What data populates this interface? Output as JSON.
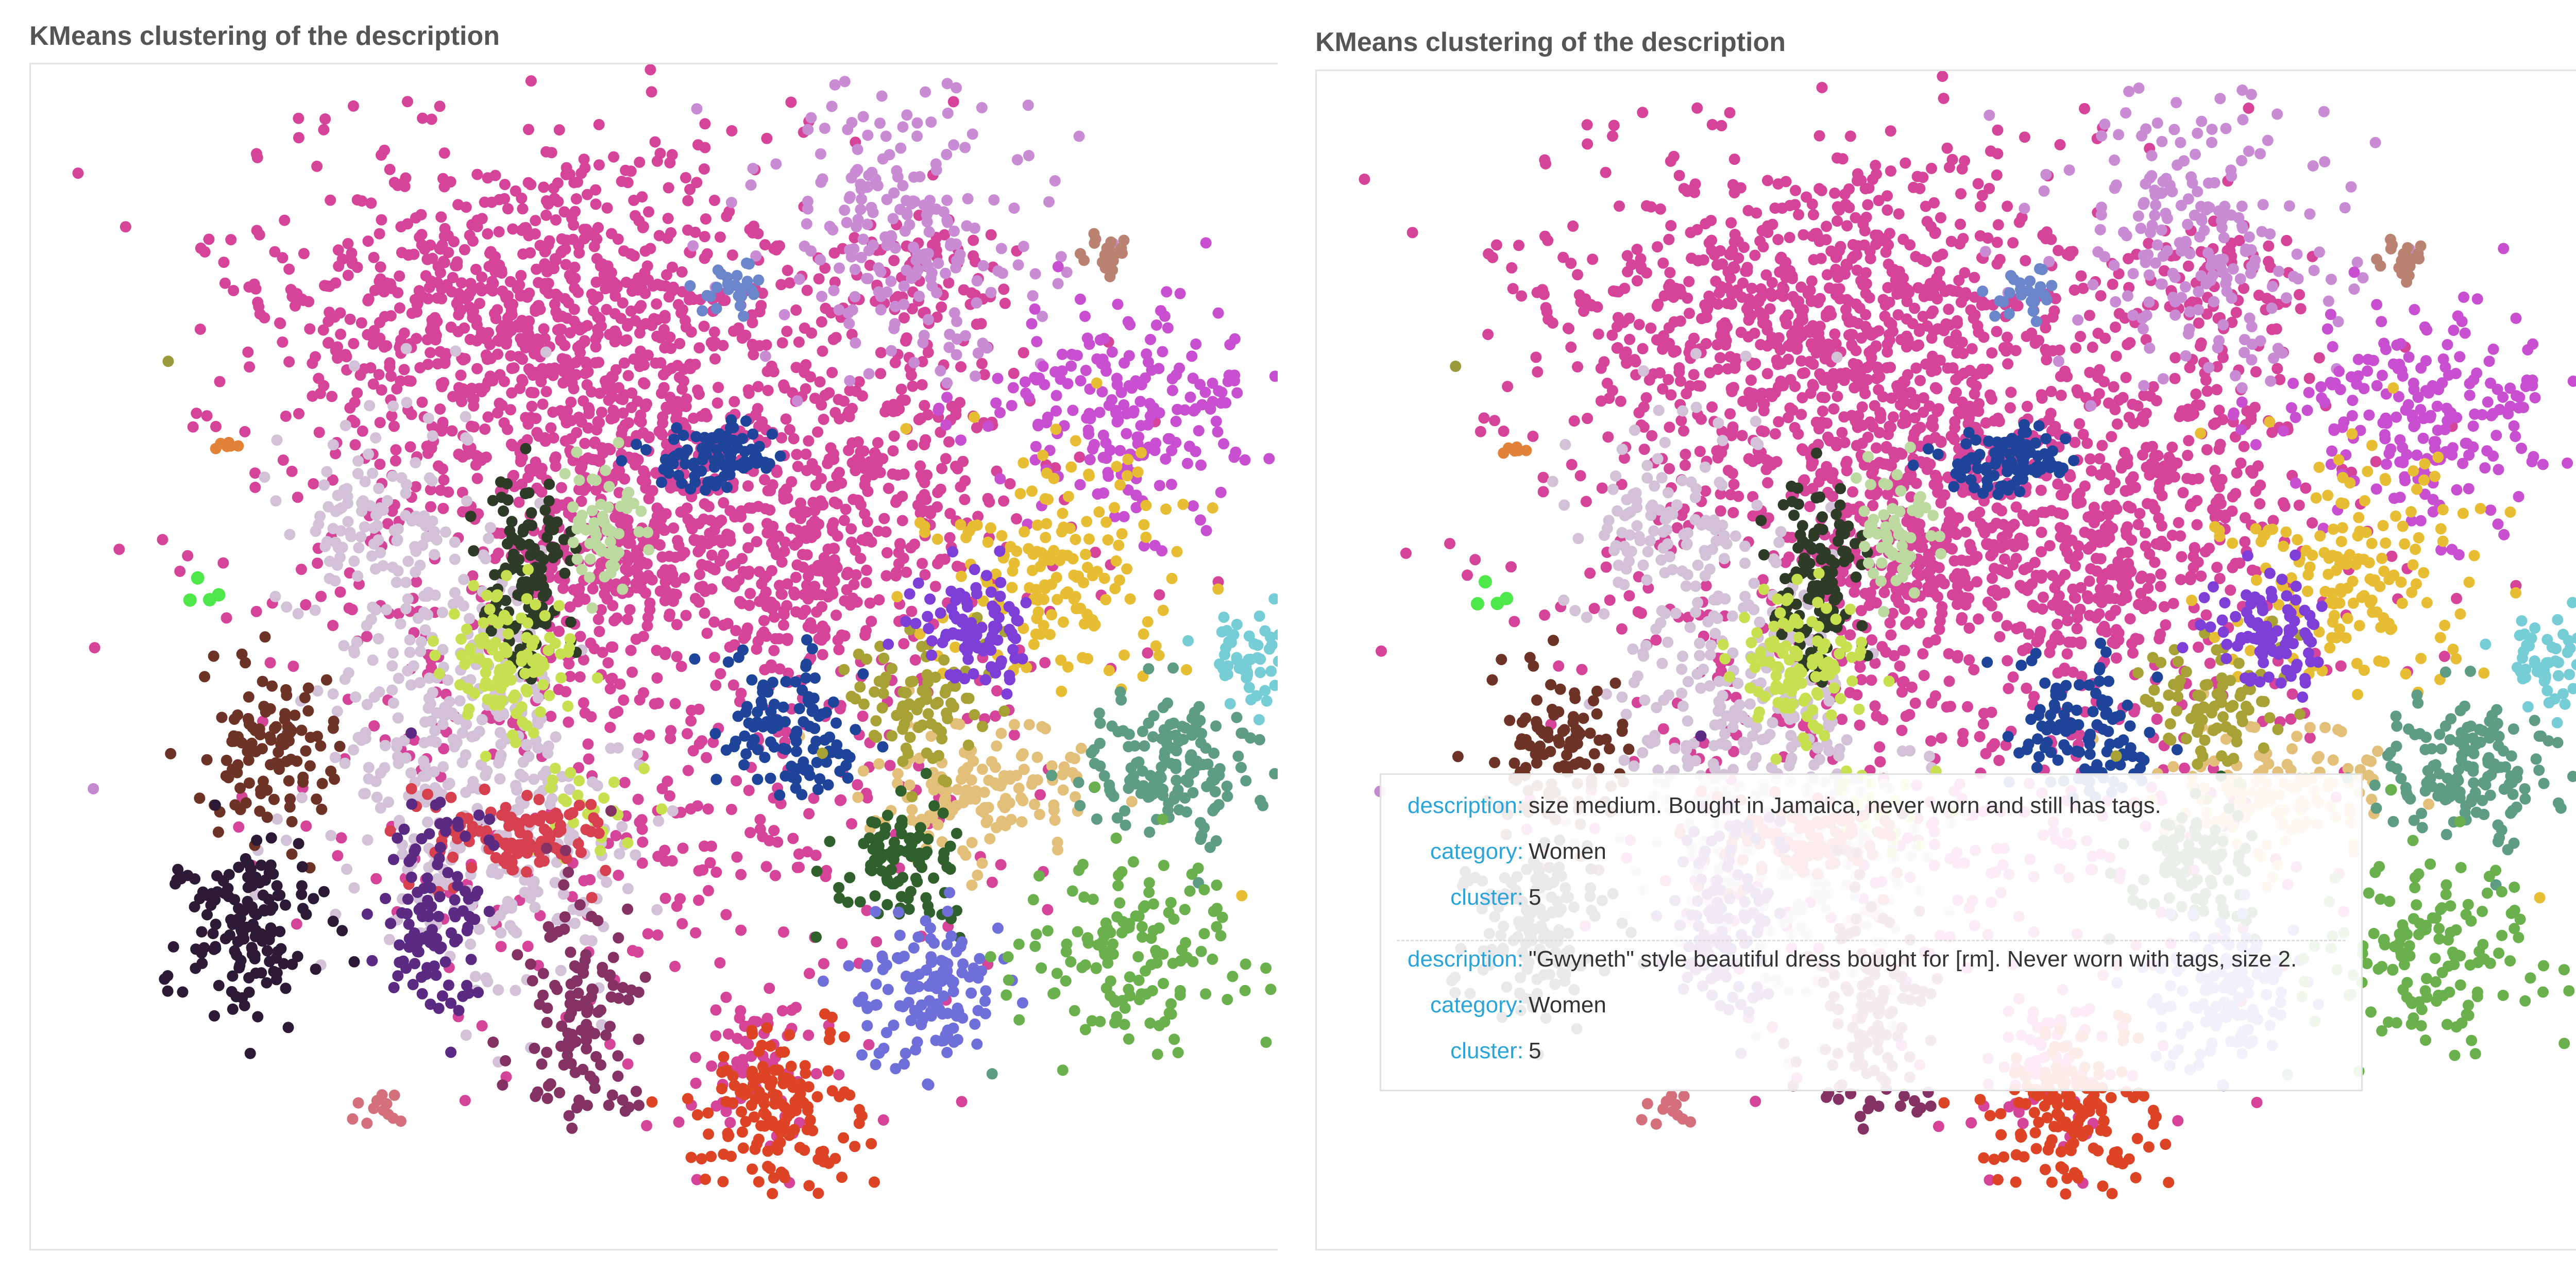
{
  "panels": [
    {
      "title": "KMeans clustering of the description"
    },
    {
      "title": "KMeans clustering of the description"
    }
  ],
  "tooltip": {
    "items": [
      {
        "description_key": "description:",
        "description": "size medium. Bought in Jamaica, never worn and still has tags.",
        "category_key": "category:",
        "category": "Women",
        "cluster_key": "cluster:",
        "cluster": "5"
      },
      {
        "description_key": "description:",
        "description": "\"Gwyneth\" style beautiful dress bought for [rm]. Never worn with tags, size 2.",
        "category_key": "category:",
        "category": "Women",
        "cluster_key": "cluster:",
        "cluster": "5"
      }
    ]
  },
  "chart_data": [
    {
      "type": "scatter",
      "title": "KMeans clustering of the description",
      "xlabel": "",
      "ylabel": "",
      "grid": false,
      "legend": "none",
      "series": [
        {
          "color": "#d6449a",
          "clusters": [
            {
              "cx": 0.4,
              "cy": 0.22,
              "sx": 0.105,
              "sy": 0.075,
              "n": 900,
              "r": 11
            },
            {
              "cx": 0.52,
              "cy": 0.45,
              "sx": 0.15,
              "sy": 0.17,
              "n": 900,
              "r": 11
            },
            {
              "cx": 0.69,
              "cy": 0.32,
              "sx": 0.05,
              "sy": 0.06,
              "n": 140,
              "r": 11
            },
            {
              "cx": 0.72,
              "cy": 0.18,
              "sx": 0.03,
              "sy": 0.03,
              "n": 60,
              "r": 11
            },
            {
              "cx": 0.48,
              "cy": 0.4,
              "sx": 0.05,
              "sy": 0.04,
              "n": 180,
              "r": 11
            },
            {
              "cx": 0.62,
              "cy": 0.42,
              "sx": 0.05,
              "sy": 0.04,
              "n": 160,
              "r": 11
            },
            {
              "cx": 0.58,
              "cy": 0.83,
              "sx": 0.04,
              "sy": 0.04,
              "n": 70,
              "r": 11
            }
          ]
        },
        {
          "color": "#c98bd4",
          "clusters": [
            {
              "cx": 0.7,
              "cy": 0.14,
              "sx": 0.055,
              "sy": 0.06,
              "n": 220,
              "r": 11
            }
          ]
        },
        {
          "color": "#c94fd1",
          "clusters": [
            {
              "cx": 0.88,
              "cy": 0.29,
              "sx": 0.07,
              "sy": 0.045,
              "n": 220,
              "r": 11
            }
          ]
        },
        {
          "color": "#d3c1d8",
          "clusters": [
            {
              "cx": 0.33,
              "cy": 0.55,
              "sx": 0.05,
              "sy": 0.09,
              "n": 320,
              "r": 11
            },
            {
              "cx": 0.41,
              "cy": 0.66,
              "sx": 0.04,
              "sy": 0.06,
              "n": 120,
              "r": 11
            },
            {
              "cx": 0.27,
              "cy": 0.38,
              "sx": 0.03,
              "sy": 0.04,
              "n": 90,
              "r": 11
            }
          ]
        },
        {
          "color": "#e6bd33",
          "clusters": [
            {
              "cx": 0.82,
              "cy": 0.43,
              "sx": 0.05,
              "sy": 0.05,
              "n": 170,
              "r": 11
            }
          ]
        },
        {
          "color": "#e3c07a",
          "clusters": [
            {
              "cx": 0.76,
              "cy": 0.61,
              "sx": 0.04,
              "sy": 0.03,
              "n": 140,
              "r": 11
            }
          ]
        },
        {
          "color": "#2e3b26",
          "clusters": [
            {
              "cx": 0.4,
              "cy": 0.43,
              "sx": 0.018,
              "sy": 0.04,
              "n": 120,
              "r": 11
            }
          ]
        },
        {
          "color": "#c6e050",
          "clusters": [
            {
              "cx": 0.38,
              "cy": 0.5,
              "sx": 0.025,
              "sy": 0.03,
              "n": 110,
              "r": 11
            },
            {
              "cx": 0.44,
              "cy": 0.62,
              "sx": 0.02,
              "sy": 0.02,
              "n": 30,
              "r": 11
            }
          ]
        },
        {
          "color": "#bcd9a0",
          "clusters": [
            {
              "cx": 0.46,
              "cy": 0.39,
              "sx": 0.018,
              "sy": 0.025,
              "n": 60,
              "r": 11
            }
          ]
        },
        {
          "color": "#1e4599",
          "clusters": [
            {
              "cx": 0.55,
              "cy": 0.33,
              "sx": 0.025,
              "sy": 0.015,
              "n": 90,
              "r": 11
            },
            {
              "cx": 0.61,
              "cy": 0.56,
              "sx": 0.03,
              "sy": 0.03,
              "n": 110,
              "r": 11
            }
          ]
        },
        {
          "color": "#6c86cc",
          "clusters": [
            {
              "cx": 0.56,
              "cy": 0.19,
              "sx": 0.012,
              "sy": 0.012,
              "n": 25,
              "r": 11
            }
          ]
        },
        {
          "color": "#a7a136",
          "clusters": [
            {
              "cx": 0.71,
              "cy": 0.54,
              "sx": 0.03,
              "sy": 0.025,
              "n": 90,
              "r": 11
            }
          ]
        },
        {
          "color": "#7e3ed8",
          "clusters": [
            {
              "cx": 0.76,
              "cy": 0.48,
              "sx": 0.025,
              "sy": 0.025,
              "n": 90,
              "r": 11
            }
          ]
        },
        {
          "color": "#77cdd6",
          "clusters": [
            {
              "cx": 0.98,
              "cy": 0.5,
              "sx": 0.018,
              "sy": 0.02,
              "n": 60,
              "r": 11
            }
          ]
        },
        {
          "color": "#5e9c84",
          "clusters": [
            {
              "cx": 0.91,
              "cy": 0.59,
              "sx": 0.035,
              "sy": 0.03,
              "n": 150,
              "r": 11
            }
          ]
        },
        {
          "color": "#6d3326",
          "clusters": [
            {
              "cx": 0.19,
              "cy": 0.58,
              "sx": 0.025,
              "sy": 0.035,
              "n": 110,
              "r": 11
            }
          ]
        },
        {
          "color": "#d7404f",
          "clusters": [
            {
              "cx": 0.39,
              "cy": 0.65,
              "sx": 0.035,
              "sy": 0.02,
              "n": 110,
              "r": 11
            }
          ]
        },
        {
          "color": "#30612c",
          "clusters": [
            {
              "cx": 0.7,
              "cy": 0.67,
              "sx": 0.022,
              "sy": 0.03,
              "n": 100,
              "r": 11
            }
          ]
        },
        {
          "color": "#6f6fd9",
          "clusters": [
            {
              "cx": 0.72,
              "cy": 0.78,
              "sx": 0.03,
              "sy": 0.035,
              "n": 130,
              "r": 11
            }
          ]
        },
        {
          "color": "#6ab04c",
          "clusters": [
            {
              "cx": 0.88,
              "cy": 0.75,
              "sx": 0.04,
              "sy": 0.04,
              "n": 150,
              "r": 11
            }
          ]
        },
        {
          "color": "#2d1a36",
          "clusters": [
            {
              "cx": 0.17,
              "cy": 0.73,
              "sx": 0.03,
              "sy": 0.035,
              "n": 150,
              "r": 11
            }
          ]
        },
        {
          "color": "#5b2a83",
          "clusters": [
            {
              "cx": 0.32,
              "cy": 0.72,
              "sx": 0.022,
              "sy": 0.05,
              "n": 110,
              "r": 11
            }
          ]
        },
        {
          "color": "#843264",
          "clusters": [
            {
              "cx": 0.44,
              "cy": 0.8,
              "sx": 0.025,
              "sy": 0.05,
              "n": 120,
              "r": 11
            }
          ]
        },
        {
          "color": "#dd4426",
          "clusters": [
            {
              "cx": 0.6,
              "cy": 0.88,
              "sx": 0.035,
              "sy": 0.035,
              "n": 150,
              "r": 11
            }
          ]
        },
        {
          "color": "#b98271",
          "clusters": [
            {
              "cx": 0.86,
              "cy": 0.16,
              "sx": 0.01,
              "sy": 0.01,
              "n": 20,
              "r": 11
            }
          ]
        },
        {
          "color": "#d4707c",
          "clusters": [
            {
              "cx": 0.28,
              "cy": 0.88,
              "sx": 0.012,
              "sy": 0.01,
              "n": 12,
              "r": 11
            }
          ]
        },
        {
          "color": "#4ee84a",
          "clusters": [
            {
              "cx": 0.13,
              "cy": 0.44,
              "sx": 0.01,
              "sy": 0.006,
              "n": 4,
              "r": 13
            }
          ]
        },
        {
          "color": "#e28238",
          "clusters": [
            {
              "cx": 0.16,
              "cy": 0.32,
              "sx": 0.006,
              "sy": 0.003,
              "n": 6,
              "r": 11
            }
          ]
        }
      ],
      "note_points": [
        {
          "x": 0.11,
          "y": 0.25,
          "color": "#9a9a3a"
        },
        {
          "x": 0.05,
          "y": 0.61,
          "color": "#c48ad1"
        },
        {
          "x": 0.54,
          "y": 0.05,
          "color": "#d6449a"
        },
        {
          "x": 0.54,
          "y": 0.07,
          "color": "#d6449a"
        },
        {
          "x": 0.97,
          "y": 0.7,
          "color": "#e6bd33"
        },
        {
          "x": 0.77,
          "y": 0.85,
          "color": "#5e9c84"
        }
      ]
    },
    {
      "type": "scatter",
      "title": "KMeans clustering of the description",
      "xlabel": "",
      "ylabel": "",
      "grid": false,
      "legend": "none",
      "same_as": 0
    }
  ]
}
